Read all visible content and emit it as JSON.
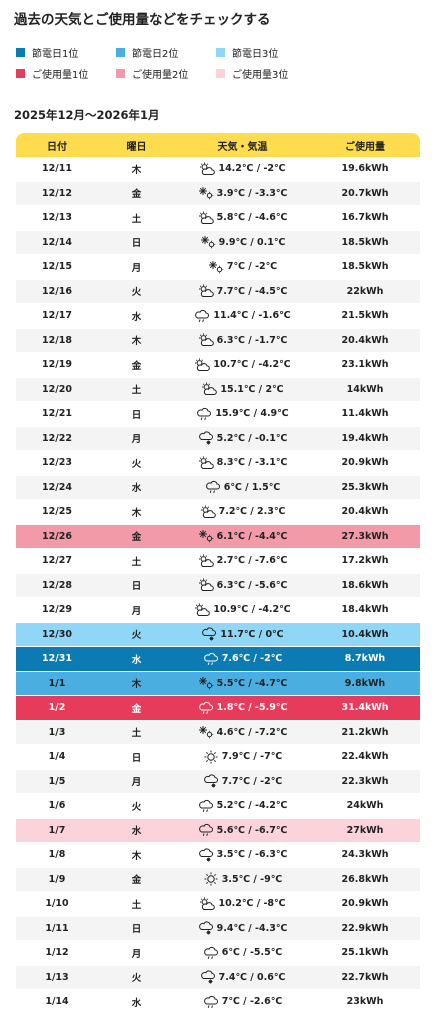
{
  "page": {
    "title": "過去の天気とご使用量などをチェックする",
    "period": "2025年12月〜2026年1月"
  },
  "colors": {
    "save1": "#0c7bb4",
    "save2": "#4aaee0",
    "save3": "#8fd6f7",
    "use1": "#e63b5b",
    "use2": "#f39aa9",
    "use3": "#fcd3da",
    "header": "#fedc4d",
    "alt_row": "#f4f4f4"
  },
  "legend": [
    {
      "label": "節電日1位",
      "color": "#0c7bb4"
    },
    {
      "label": "節電日2位",
      "color": "#4aaee0"
    },
    {
      "label": "節電日3位",
      "color": "#8fd6f7"
    },
    {
      "label": "ご使用量1位",
      "color": "#e63b5b"
    },
    {
      "label": "ご使用量2位",
      "color": "#f39aa9"
    },
    {
      "label": "ご使用量3位",
      "color": "#fcd3da"
    }
  ],
  "table": {
    "headers": [
      "日付",
      "曜日",
      "天気・気温",
      "ご使用量"
    ],
    "rows": [
      {
        "date": "12/11",
        "dow": "木",
        "icon": "sun-cloud-icon",
        "temp": "14.2℃ / -2℃",
        "usage": "19.6kWh",
        "rank": ""
      },
      {
        "date": "12/12",
        "dow": "金",
        "icon": "snow-sun-icon",
        "temp": "3.9℃ / -3.3℃",
        "usage": "20.7kWh",
        "rank": ""
      },
      {
        "date": "12/13",
        "dow": "土",
        "icon": "sun-cloud-icon",
        "temp": "5.8℃ / -4.6℃",
        "usage": "16.7kWh",
        "rank": ""
      },
      {
        "date": "12/14",
        "dow": "日",
        "icon": "snow-sun-icon",
        "temp": "9.9℃ / 0.1℃",
        "usage": "18.5kWh",
        "rank": ""
      },
      {
        "date": "12/15",
        "dow": "月",
        "icon": "snow-sun-icon",
        "temp": "7℃ / -2℃",
        "usage": "18.5kWh",
        "rank": ""
      },
      {
        "date": "12/16",
        "dow": "火",
        "icon": "sun-cloud-icon",
        "temp": "7.7℃ / -4.5℃",
        "usage": "22kWh",
        "rank": ""
      },
      {
        "date": "12/17",
        "dow": "水",
        "icon": "cloud-rain-icon",
        "temp": "11.4℃ / -1.6℃",
        "usage": "21.5kWh",
        "rank": ""
      },
      {
        "date": "12/18",
        "dow": "木",
        "icon": "sun-cloud-icon",
        "temp": "6.3℃ / -1.7℃",
        "usage": "20.4kWh",
        "rank": ""
      },
      {
        "date": "12/19",
        "dow": "金",
        "icon": "sun-cloud-icon",
        "temp": "10.7℃ / -4.2℃",
        "usage": "23.1kWh",
        "rank": ""
      },
      {
        "date": "12/20",
        "dow": "土",
        "icon": "sun-cloud-icon",
        "temp": "15.1℃ / 2℃",
        "usage": "14kWh",
        "rank": ""
      },
      {
        "date": "12/21",
        "dow": "日",
        "icon": "cloud-rain-icon",
        "temp": "15.9℃ / 4.9℃",
        "usage": "11.4kWh",
        "rank": ""
      },
      {
        "date": "12/22",
        "dow": "月",
        "icon": "cloud-snow-icon",
        "temp": "5.2℃ / -0.1℃",
        "usage": "19.4kWh",
        "rank": ""
      },
      {
        "date": "12/23",
        "dow": "火",
        "icon": "sun-cloud-icon",
        "temp": "8.3℃ / -3.1℃",
        "usage": "20.9kWh",
        "rank": ""
      },
      {
        "date": "12/24",
        "dow": "水",
        "icon": "cloud-rain-icon",
        "temp": "6℃ / 1.5℃",
        "usage": "25.3kWh",
        "rank": ""
      },
      {
        "date": "12/25",
        "dow": "木",
        "icon": "sun-cloud-icon",
        "temp": "7.2℃ / 2.3℃",
        "usage": "20.4kWh",
        "rank": ""
      },
      {
        "date": "12/26",
        "dow": "金",
        "icon": "snow-sun-icon",
        "temp": "6.1℃ / -4.4℃",
        "usage": "27.3kWh",
        "rank": "use2"
      },
      {
        "date": "12/27",
        "dow": "土",
        "icon": "sun-cloud-icon",
        "temp": "2.7℃ / -7.6℃",
        "usage": "17.2kWh",
        "rank": ""
      },
      {
        "date": "12/28",
        "dow": "日",
        "icon": "sun-cloud-icon",
        "temp": "6.3℃ / -5.6℃",
        "usage": "18.6kWh",
        "rank": ""
      },
      {
        "date": "12/29",
        "dow": "月",
        "icon": "sun-cloud-icon",
        "temp": "10.9℃ / -4.2℃",
        "usage": "18.4kWh",
        "rank": ""
      },
      {
        "date": "12/30",
        "dow": "火",
        "icon": "cloud-snow-icon",
        "temp": "11.7℃ / 0℃",
        "usage": "10.4kWh",
        "rank": "save3"
      },
      {
        "date": "12/31",
        "dow": "水",
        "icon": "cloud-rain-icon",
        "temp": "7.6℃ / -2℃",
        "usage": "8.7kWh",
        "rank": "save1"
      },
      {
        "date": "1/1",
        "dow": "木",
        "icon": "snow-sun-icon",
        "temp": "5.5℃ / -4.7℃",
        "usage": "9.8kWh",
        "rank": "save2"
      },
      {
        "date": "1/2",
        "dow": "金",
        "icon": "cloud-rain-icon",
        "temp": "1.8℃ / -5.9℃",
        "usage": "31.4kWh",
        "rank": "use1"
      },
      {
        "date": "1/3",
        "dow": "土",
        "icon": "snow-sun-icon",
        "temp": "4.6℃ / -7.2℃",
        "usage": "21.2kWh",
        "rank": ""
      },
      {
        "date": "1/4",
        "dow": "日",
        "icon": "sun-icon",
        "temp": "7.9℃ / -7℃",
        "usage": "22.4kWh",
        "rank": ""
      },
      {
        "date": "1/5",
        "dow": "月",
        "icon": "cloud-snow-icon",
        "temp": "7.7℃ / -2℃",
        "usage": "22.3kWh",
        "rank": ""
      },
      {
        "date": "1/6",
        "dow": "火",
        "icon": "cloud-rain-icon",
        "temp": "5.2℃ / -4.2℃",
        "usage": "24kWh",
        "rank": ""
      },
      {
        "date": "1/7",
        "dow": "水",
        "icon": "cloud-rain-icon",
        "temp": "5.6℃ / -6.7℃",
        "usage": "27kWh",
        "rank": "use3"
      },
      {
        "date": "1/8",
        "dow": "木",
        "icon": "cloud-snow-icon",
        "temp": "3.5℃ / -6.3℃",
        "usage": "24.3kWh",
        "rank": ""
      },
      {
        "date": "1/9",
        "dow": "金",
        "icon": "sun-icon",
        "temp": "3.5℃ / -9℃",
        "usage": "26.8kWh",
        "rank": ""
      },
      {
        "date": "1/10",
        "dow": "土",
        "icon": "sun-cloud-icon",
        "temp": "10.2℃ / -8℃",
        "usage": "20.9kWh",
        "rank": ""
      },
      {
        "date": "1/11",
        "dow": "日",
        "icon": "cloud-snow-icon",
        "temp": "9.4℃ / -4.3℃",
        "usage": "22.9kWh",
        "rank": ""
      },
      {
        "date": "1/12",
        "dow": "月",
        "icon": "cloud-rain-icon",
        "temp": "6℃ / -5.5℃",
        "usage": "25.1kWh",
        "rank": ""
      },
      {
        "date": "1/13",
        "dow": "火",
        "icon": "cloud-snow-icon",
        "temp": "7.4℃ / 0.6℃",
        "usage": "22.7kWh",
        "rank": ""
      },
      {
        "date": "1/14",
        "dow": "水",
        "icon": "cloud-rain-icon",
        "temp": "7℃ / -2.6℃",
        "usage": "23kWh",
        "rank": ""
      }
    ]
  }
}
